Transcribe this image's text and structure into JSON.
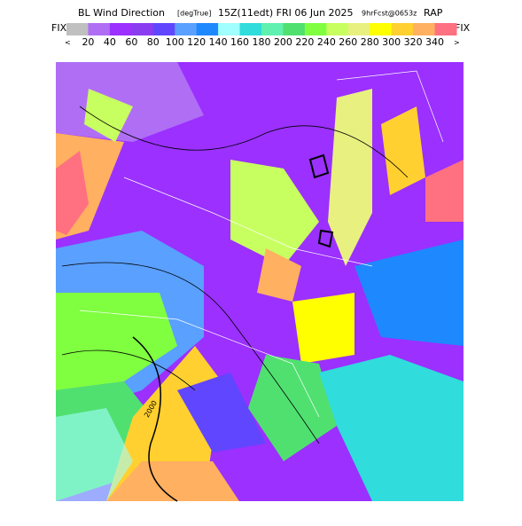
{
  "header": {
    "title": "BL Wind Direction",
    "units": "[degTrue]",
    "valid": "15Z(11edt) FRI 06 Jun 2025",
    "forecast": "9hrFcst@0653z",
    "model": "RAP"
  },
  "colorbar": {
    "left_label": "FIX",
    "right_label": "FIX",
    "low_arrow": "<",
    "high_arrow": ">",
    "ticks": [
      20,
      40,
      60,
      80,
      100,
      120,
      140,
      160,
      180,
      200,
      220,
      240,
      260,
      280,
      300,
      320,
      340
    ],
    "colors": [
      "#c0c0c0",
      "#b06ef5",
      "#9b30ff",
      "#8a3cf0",
      "#6146ff",
      "#5aa0ff",
      "#1e88ff",
      "#a0ffff",
      "#30dcdc",
      "#60f0b0",
      "#50e070",
      "#80ff40",
      "#c8ff60",
      "#e8f080",
      "#ffff00",
      "#ffd030",
      "#ffb060",
      "#ff7080"
    ]
  },
  "map": {
    "contour_label": "2000"
  }
}
